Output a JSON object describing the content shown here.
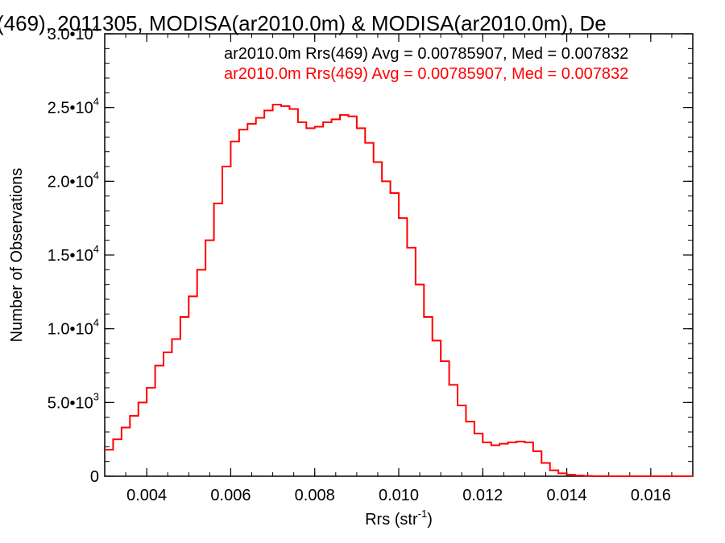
{
  "chart_data": {
    "type": "line",
    "title": "(469), 2011305, MODISA(ar2010.0m) & MODISA(ar2010.0m), De",
    "xlabel": "Rrs (str",
    "xlabel_sup": "-1",
    "xlabel_close": ")",
    "ylabel": "Number of Observations",
    "xlim": [
      0.003,
      0.017
    ],
    "ylim": [
      0,
      30000
    ],
    "x_ticks": [
      {
        "value": 0.004,
        "label": "0.004"
      },
      {
        "value": 0.006,
        "label": "0.006"
      },
      {
        "value": 0.008,
        "label": "0.008"
      },
      {
        "value": 0.01,
        "label": "0.010"
      },
      {
        "value": 0.012,
        "label": "0.012"
      },
      {
        "value": 0.014,
        "label": "0.014"
      },
      {
        "value": 0.016,
        "label": "0.016"
      }
    ],
    "y_ticks": [
      {
        "value": 0,
        "mant": "0",
        "exp": ""
      },
      {
        "value": 5000,
        "mant": "5.0•10",
        "exp": "3"
      },
      {
        "value": 10000,
        "mant": "1.0•10",
        "exp": "4"
      },
      {
        "value": 15000,
        "mant": "1.5•10",
        "exp": "4"
      },
      {
        "value": 20000,
        "mant": "2.0•10",
        "exp": "4"
      },
      {
        "value": 25000,
        "mant": "2.5•10",
        "exp": "4"
      },
      {
        "value": 30000,
        "mant": "3.0•10",
        "exp": "4"
      }
    ],
    "legend": [
      {
        "text": "ar2010.0m Rrs(469) Avg = 0.00785907, Med = 0.007832",
        "color": "#000000"
      },
      {
        "text": "ar2010.0m Rrs(469) Avg = 0.00785907, Med = 0.007832",
        "color": "#ff0000"
      }
    ],
    "series": [
      {
        "color": "#ff0000",
        "step": true,
        "x": [
          0.003,
          0.0032,
          0.0034,
          0.0036,
          0.0038,
          0.004,
          0.0042,
          0.0044,
          0.0046,
          0.0048,
          0.005,
          0.0052,
          0.0054,
          0.0056,
          0.0058,
          0.006,
          0.0062,
          0.0064,
          0.0066,
          0.0068,
          0.007,
          0.0072,
          0.0074,
          0.0076,
          0.0078,
          0.008,
          0.0082,
          0.0084,
          0.0086,
          0.0088,
          0.009,
          0.0092,
          0.0094,
          0.0096,
          0.0098,
          0.01,
          0.0102,
          0.0104,
          0.0106,
          0.0108,
          0.011,
          0.0112,
          0.0114,
          0.0116,
          0.0118,
          0.012,
          0.0122,
          0.0124,
          0.0126,
          0.0128,
          0.013,
          0.0132,
          0.0134,
          0.0136,
          0.0138,
          0.014,
          0.0142,
          0.0144,
          0.0146,
          0.015,
          0.016,
          0.017
        ],
        "y": [
          1800,
          2500,
          3300,
          4100,
          5000,
          6000,
          7500,
          8400,
          9300,
          10800,
          12200,
          14000,
          16000,
          18500,
          21000,
          22700,
          23500,
          23900,
          24300,
          24800,
          25200,
          25100,
          24900,
          24000,
          23600,
          23700,
          24000,
          24200,
          24500,
          24400,
          23600,
          22600,
          21300,
          20000,
          19200,
          17500,
          15500,
          13000,
          10800,
          9200,
          7800,
          6200,
          4800,
          3700,
          2900,
          2300,
          2100,
          2200,
          2300,
          2350,
          2300,
          1700,
          900,
          400,
          200,
          100,
          50,
          20,
          10,
          0,
          0,
          0
        ]
      }
    ]
  }
}
